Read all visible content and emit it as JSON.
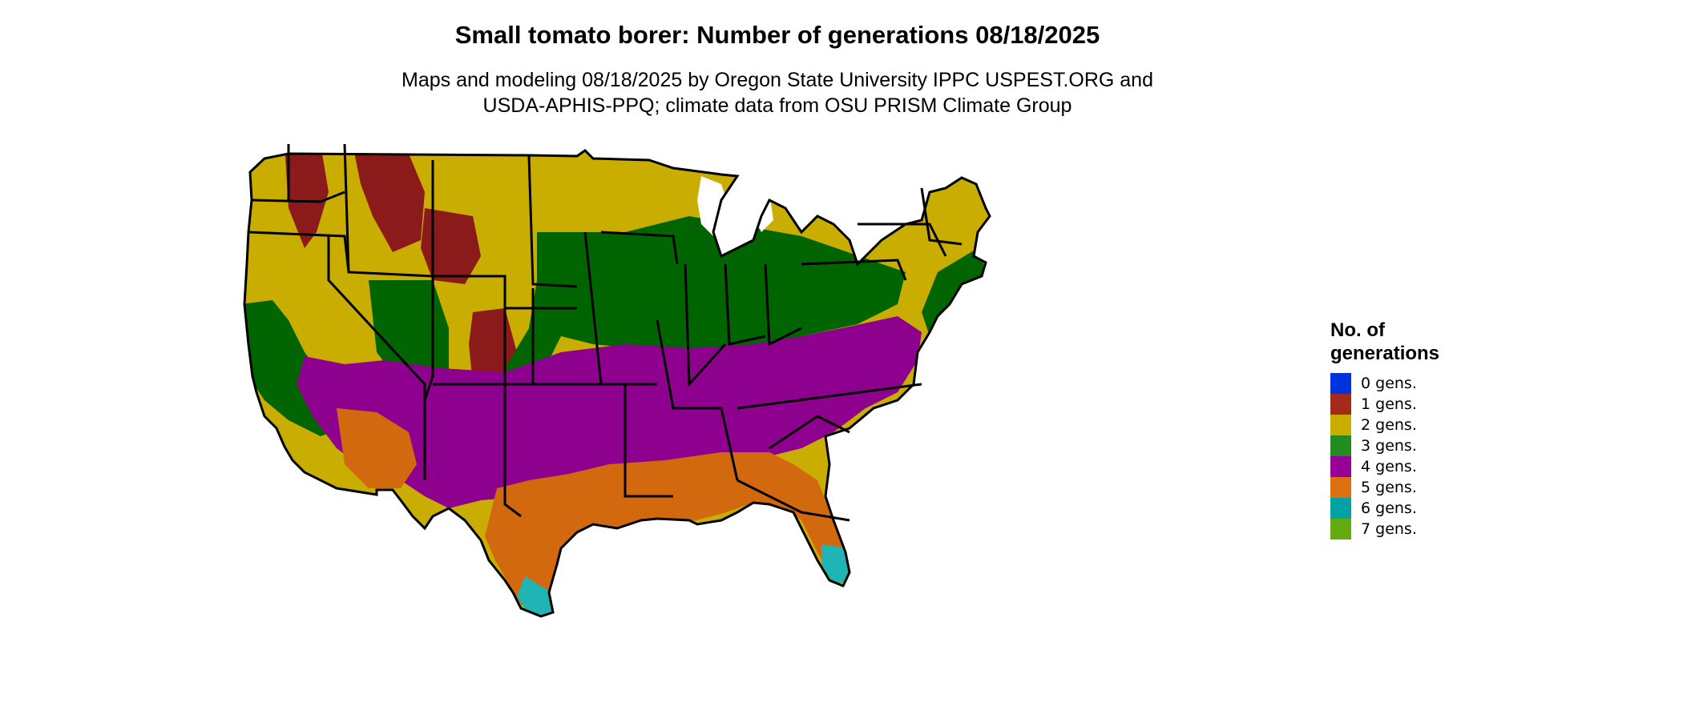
{
  "title": "Small tomato borer: Number of generations 08/18/2025",
  "subtitle_lines": [
    "Maps and modeling 08/18/2025 by Oregon State University IPPC USPEST.ORG and",
    "USDA-APHIS-PPQ; climate data from OSU PRISM Climate Group"
  ],
  "legend": {
    "title_lines": [
      "No. of",
      "generations"
    ],
    "items": [
      {
        "label": "0 gens.",
        "color": "#0033dd"
      },
      {
        "label": "1 gens.",
        "color": "#a52a1a"
      },
      {
        "label": "2 gens.",
        "color": "#c9ad00"
      },
      {
        "label": "3 gens.",
        "color": "#228b22"
      },
      {
        "label": "4 gens.",
        "color": "#990099"
      },
      {
        "label": "5 gens.",
        "color": "#dd7010"
      },
      {
        "label": "6 gens.",
        "color": "#00a3a3"
      },
      {
        "label": "7 gens.",
        "color": "#66aa11"
      }
    ]
  },
  "map_colors": {
    "one_gen": "#8b1a1a",
    "two_gen": "#c9ad00",
    "three_gen": "#006400",
    "four_gen": "#8e008e",
    "five_gen": "#d2690f",
    "six_gen": "#1fb5b5",
    "border": "#000000"
  }
}
